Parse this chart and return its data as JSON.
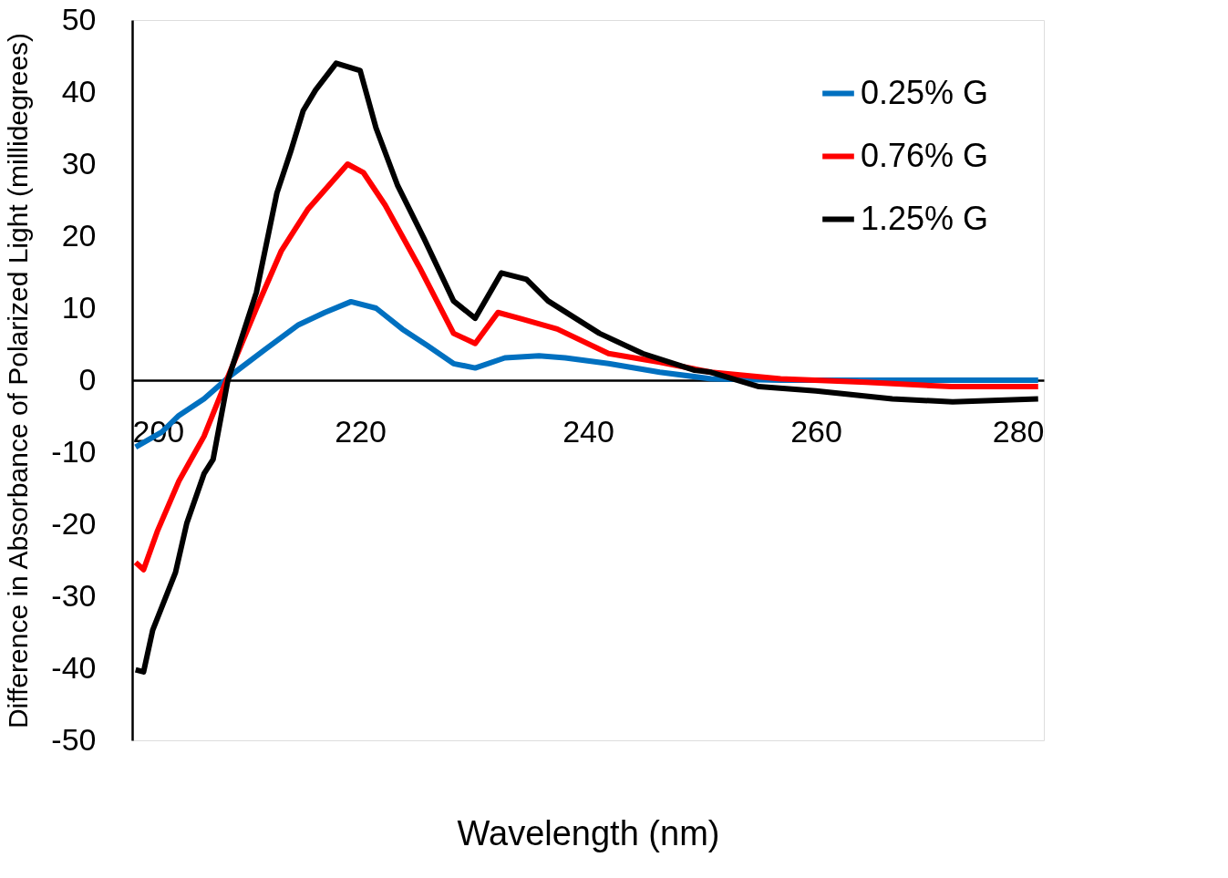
{
  "chart_data": {
    "type": "line",
    "xlabel": "Wavelength (nm)",
    "ylabel": "Difference in Absorbance of Polarized Light (millidegrees)",
    "xlim": [
      200,
      280
    ],
    "xticks": [
      200,
      220,
      240,
      260,
      280
    ],
    "ylim": [
      -50,
      50
    ],
    "yticks": [
      -50,
      -40,
      -30,
      -20,
      -10,
      0,
      10,
      20,
      30,
      40,
      50
    ],
    "grid": false,
    "legend": "top right",
    "marker": "none",
    "line_style": "solid",
    "series": [
      {
        "name": "0.25% G",
        "color": "#0070c0",
        "x": [
          200.3,
          202.6,
          204.1,
          206.3,
          208.6,
          211.6,
          214.6,
          216.9,
          219.2,
          221.4,
          223.7,
          225.9,
          228.2,
          230.1,
          232.7,
          235.7,
          238,
          241.8,
          246.3,
          250.8,
          256.9,
          279.5
        ],
        "values": [
          -9.3,
          -7.2,
          -4.9,
          -2.6,
          0.6,
          4.2,
          7.7,
          9.4,
          10.9,
          10,
          7.1,
          4.8,
          2.3,
          1.7,
          3.1,
          3.4,
          3.1,
          2.3,
          1.1,
          0.2,
          0,
          0
        ]
      },
      {
        "name": "0.76% G",
        "color": "#ff0000",
        "x": [
          200.3,
          201,
          202.2,
          204.1,
          206.3,
          208.2,
          210.9,
          213.1,
          215.4,
          218.9,
          220.3,
          222.2,
          225.2,
          228.2,
          230.1,
          232.1,
          234.2,
          237.3,
          241.8,
          246.3,
          250.8,
          256.9,
          264.4,
          271.9,
          279.5
        ],
        "values": [
          -25.3,
          -26.3,
          -21,
          -14,
          -7.8,
          -0.3,
          10,
          18,
          23.7,
          30,
          28.8,
          24.3,
          15.7,
          6.5,
          5.1,
          9.4,
          8.5,
          7.1,
          3.7,
          2.5,
          1.1,
          0.2,
          -0.3,
          -0.9,
          -0.9
        ]
      },
      {
        "name": "1.25% G",
        "color": "#000000",
        "x": [
          200.3,
          201,
          201.8,
          203.8,
          204.8,
          206.3,
          207.1,
          208.4,
          210.9,
          212.7,
          213.9,
          215,
          216.1,
          217.9,
          220,
          221.4,
          223.3,
          225.6,
          228.2,
          230.1,
          232.4,
          234.6,
          236.5,
          241,
          244.8,
          249.3,
          250.8,
          255,
          260,
          266.7,
          272,
          279.5
        ],
        "values": [
          -40.2,
          -40.5,
          -34.7,
          -26.7,
          -19.8,
          -13,
          -11,
          0,
          12.2,
          26,
          31.7,
          37.4,
          40.3,
          44,
          43,
          35,
          27,
          19.7,
          11,
          8.6,
          14.9,
          14,
          11,
          6.5,
          3.7,
          1.4,
          1.1,
          -0.9,
          -1.5,
          -2.6,
          -3,
          -2.6
        ]
      }
    ]
  }
}
